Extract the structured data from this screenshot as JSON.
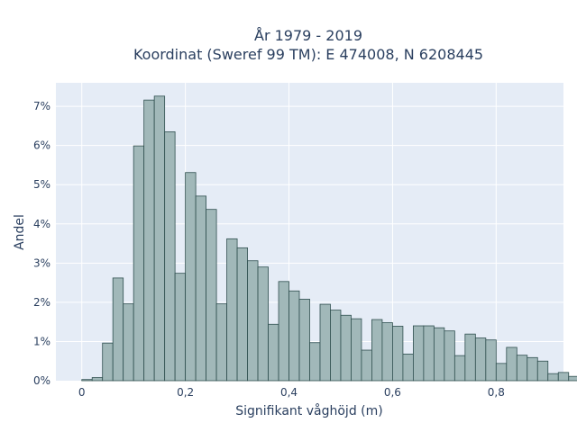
{
  "chart_data": {
    "type": "bar",
    "title": [
      "År 1979 - 2019",
      "Koordinat (Sweref 99 TM): E 474008, N 6208445"
    ],
    "xlabel": "Signifikant våghöjd (m)",
    "ylabel": "Andel",
    "xlim": [
      -0.05,
      0.93
    ],
    "ylim": [
      0,
      0.076
    ],
    "x_ticks": [
      0,
      0.2,
      0.4,
      0.6,
      0.8
    ],
    "x_tick_labels": [
      "0",
      "0,2",
      "0,4",
      "0,6",
      "0,8"
    ],
    "y_ticks": [
      0,
      0.01,
      0.02,
      0.03,
      0.04,
      0.05,
      0.06,
      0.07
    ],
    "y_tick_labels": [
      "0%",
      "1%",
      "2%",
      "3%",
      "4%",
      "5%",
      "6%",
      "7%"
    ],
    "bin_width": 0.02,
    "bin_start": 0.0,
    "values": [
      0.0003,
      0.0008,
      0.0096,
      0.0262,
      0.0196,
      0.0599,
      0.0716,
      0.0726,
      0.0635,
      0.0274,
      0.0531,
      0.0471,
      0.0437,
      0.0196,
      0.0362,
      0.0339,
      0.0306,
      0.029,
      0.0144,
      0.0253,
      0.0229,
      0.0208,
      0.0097,
      0.0195,
      0.018,
      0.0167,
      0.0158,
      0.0078,
      0.0156,
      0.0148,
      0.0139,
      0.0068,
      0.014,
      0.014,
      0.0135,
      0.0127,
      0.0064,
      0.0119,
      0.0109,
      0.0104,
      0.0044,
      0.0085,
      0.0065,
      0.0059,
      0.005,
      0.0018,
      0.0021,
      0.0011,
      0.0004,
      0.0001
    ],
    "grid": true,
    "colors": {
      "bar_fill": "#a1b8b9",
      "bar_stroke": "#2f4f4f",
      "plot_bg": "#e5ecf6",
      "grid": "#ffffff",
      "text": "#2a3f5f"
    }
  }
}
